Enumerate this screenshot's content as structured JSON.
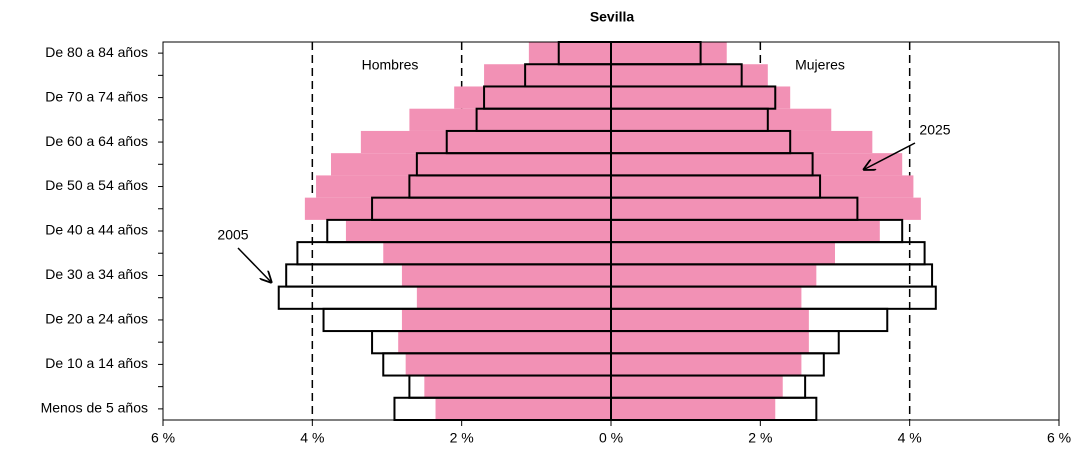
{
  "chart_data": {
    "type": "pyramid",
    "title": "Sevilla",
    "sides": [
      "Hombres",
      "Mujeres"
    ],
    "categories": [
      "Menos de 5 años",
      null,
      "De 10 a 14 años",
      null,
      "De 20 a 24 años",
      null,
      "De 30 a 34 años",
      null,
      "De 40 a 44 años",
      null,
      "De 50 a 54 años",
      null,
      "De 60 a 64 años",
      null,
      "De 70 a 74 años",
      null,
      "De 80 a 84 años"
    ],
    "series": [
      {
        "name": "2025",
        "color": "#f291b5",
        "hombres": [
          2.35,
          2.5,
          2.75,
          2.85,
          2.8,
          2.6,
          2.8,
          3.05,
          3.55,
          4.1,
          3.95,
          3.75,
          3.35,
          2.7,
          2.1,
          1.7,
          1.1
        ],
        "mujeres": [
          2.2,
          2.3,
          2.55,
          2.65,
          2.65,
          2.55,
          2.75,
          3.0,
          3.6,
          4.15,
          4.05,
          3.9,
          3.5,
          2.95,
          2.4,
          2.1,
          1.55
        ]
      },
      {
        "name": "2005",
        "color": "#000000",
        "hombres": [
          2.9,
          2.7,
          3.05,
          3.2,
          3.85,
          4.45,
          4.35,
          4.2,
          3.8,
          3.2,
          2.7,
          2.6,
          2.2,
          1.8,
          1.7,
          1.15,
          0.7
        ],
        "mujeres": [
          2.75,
          2.6,
          2.85,
          3.05,
          3.7,
          4.35,
          4.3,
          4.2,
          3.9,
          3.3,
          2.8,
          2.7,
          2.4,
          2.1,
          2.2,
          1.75,
          1.2
        ]
      }
    ],
    "xlim": [
      -6,
      6
    ],
    "xticks": [
      {
        "value": -6,
        "label": "6 %"
      },
      {
        "value": -4,
        "label": "4 %"
      },
      {
        "value": -2,
        "label": "2 %"
      },
      {
        "value": 0,
        "label": "0 %"
      },
      {
        "value": 2,
        "label": "2 %"
      },
      {
        "value": 4,
        "label": "4 %"
      },
      {
        "value": 6,
        "label": "6 %"
      }
    ],
    "grid": true
  }
}
